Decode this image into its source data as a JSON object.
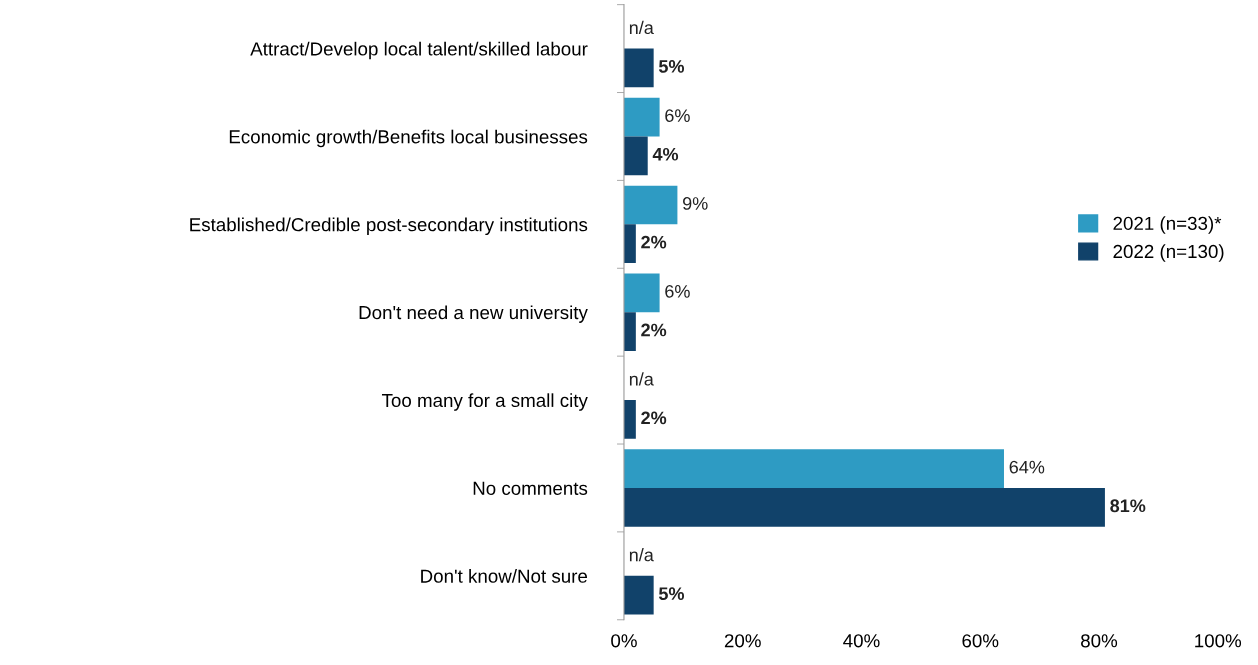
{
  "chart_data": {
    "type": "bar",
    "orientation": "horizontal",
    "categories": [
      "Attract/Develop local talent/skilled labour",
      "Economic growth/Benefits local businesses",
      "Established/Credible post-secondary institutions",
      "Don't need a new university",
      "Too many for a small city",
      "No comments",
      "Don't know/Not sure"
    ],
    "series": [
      {
        "name": "2021 (n=33)*",
        "color": "#2e9bc3",
        "values": [
          null,
          6,
          9,
          6,
          null,
          64,
          null
        ],
        "value_labels": [
          "n/a",
          "6%",
          "9%",
          "6%",
          "n/a",
          "64%",
          "n/a"
        ]
      },
      {
        "name": "2022 (n=130)",
        "color": "#11426a",
        "values": [
          5,
          4,
          2,
          2,
          2,
          81,
          5
        ],
        "value_labels": [
          "5%",
          "4%",
          "2%",
          "2%",
          "2%",
          "81%",
          "5%"
        ]
      }
    ],
    "xlim": [
      0,
      100
    ],
    "xticks": [
      {
        "value": 0,
        "label": "0%"
      },
      {
        "value": 20,
        "label": "20%"
      },
      {
        "value": 40,
        "label": "40%"
      },
      {
        "value": 60,
        "label": "60%"
      },
      {
        "value": 80,
        "label": "80%"
      },
      {
        "value": 100,
        "label": "100%"
      }
    ],
    "grid": false,
    "legend": "right"
  }
}
